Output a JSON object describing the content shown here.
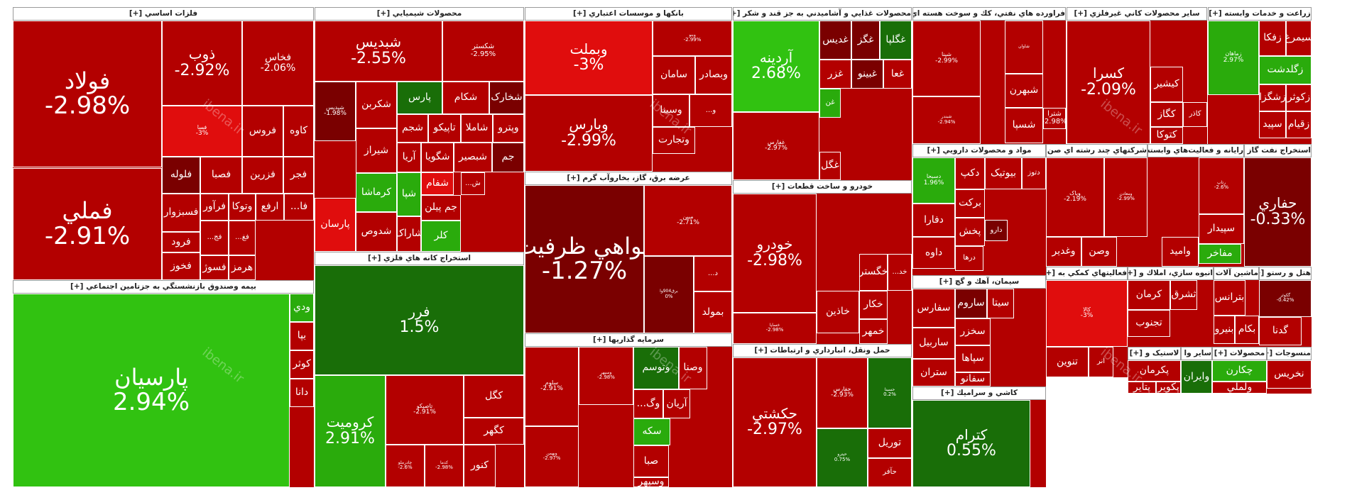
{
  "watermark_text": "ibena.ir",
  "colors": {
    "dark_red": "#7a0000",
    "red": "#b30000",
    "bright_red": "#e00d0d",
    "dark_green": "#196e08",
    "green": "#2aab0c",
    "bright_green": "#31c211"
  },
  "chart_data": {
    "type": "heatmap",
    "sectors": [
      {
        "name": "فلزات اساسي [+]",
        "tiles": [
          {
            "symbol": "فولاد",
            "change": "-2.98%"
          },
          {
            "symbol": "فملي",
            "change": "-2.91%"
          },
          {
            "symbol": "ذوب",
            "change": "-2.92%"
          },
          {
            "symbol": "فخاس",
            "change": "-2.06%"
          },
          {
            "symbol": "فسا",
            "change": "-3%"
          },
          {
            "symbol": "فروس",
            "change": ""
          },
          {
            "symbol": "کاوه",
            "change": ""
          },
          {
            "symbol": "فلوله",
            "change": ""
          },
          {
            "symbol": "فصبا",
            "change": ""
          },
          {
            "symbol": "فزرين",
            "change": ""
          },
          {
            "symbol": "فجر",
            "change": ""
          },
          {
            "symbol": "فسبزوار",
            "change": ""
          },
          {
            "symbol": "فرآور",
            "change": ""
          },
          {
            "symbol": "وتوکا",
            "change": ""
          },
          {
            "symbol": "ارفع",
            "change": ""
          },
          {
            "symbol": "فا...",
            "change": ""
          },
          {
            "symbol": "فرود",
            "change": ""
          },
          {
            "symbol": "فخوز",
            "change": ""
          },
          {
            "symbol": "فسوژ",
            "change": ""
          },
          {
            "symbol": "هرمز",
            "change": ""
          },
          {
            "symbol": "فج...",
            "change": ""
          },
          {
            "symbol": "فغ...",
            "change": ""
          }
        ]
      },
      {
        "name": "بيمه وصندوق بازنشستگي به جزتامين اجتماعي [+]",
        "tiles": [
          {
            "symbol": "پارسيان",
            "change": "2.94%"
          },
          {
            "symbol": "ودي",
            "change": ""
          },
          {
            "symbol": "بپا",
            "change": ""
          },
          {
            "symbol": "کوثر",
            "change": ""
          },
          {
            "symbol": "دانا",
            "change": ""
          }
        ]
      },
      {
        "name": "محصولات شيميايي [+]",
        "tiles": [
          {
            "symbol": "شبديس",
            "change": "-2.55%"
          },
          {
            "symbol": "شکستر",
            "change": "-2.95%"
          },
          {
            "symbol": "شپديس",
            "change": "-1.98%"
          },
          {
            "symbol": "شکربن",
            "change": ""
          },
          {
            "symbol": "شيراز",
            "change": ""
          },
          {
            "symbol": "کرماشا",
            "change": ""
          },
          {
            "symbol": "شدوص",
            "change": ""
          },
          {
            "symbol": "پارسان",
            "change": ""
          },
          {
            "symbol": "پارس",
            "change": ""
          },
          {
            "symbol": "شکام",
            "change": ""
          },
          {
            "symbol": "شخارک",
            "change": ""
          },
          {
            "symbol": "شجم",
            "change": ""
          },
          {
            "symbol": "تاپيکو",
            "change": ""
          },
          {
            "symbol": "شاملا",
            "change": ""
          },
          {
            "symbol": "وپترو",
            "change": ""
          },
          {
            "symbol": "آريا",
            "change": ""
          },
          {
            "symbol": "شگويا",
            "change": ""
          },
          {
            "symbol": "شبصير",
            "change": ""
          },
          {
            "symbol": "جم",
            "change": ""
          },
          {
            "symbol": "شفام",
            "change": ""
          },
          {
            "symbol": "شپا",
            "change": ""
          },
          {
            "symbol": "شاراک",
            "change": ""
          },
          {
            "symbol": "جم پيلن",
            "change": ""
          },
          {
            "symbol": "کلر",
            "change": ""
          },
          {
            "symbol": "ش...",
            "change": ""
          }
        ]
      },
      {
        "name": "استخراج کانه هاي فلزي [+]",
        "tiles": [
          {
            "symbol": "فرر",
            "change": "1.5%"
          },
          {
            "symbol": "کروميت",
            "change": "2.91%"
          },
          {
            "symbol": "تاصيکو",
            "change": "-2.91%"
          },
          {
            "symbol": "کگل",
            "change": ""
          },
          {
            "symbol": "کنور",
            "change": ""
          },
          {
            "symbol": "کگهر",
            "change": ""
          },
          {
            "symbol": "چادرملو",
            "change": "-2.6%"
          },
          {
            "symbol": "کدما",
            "change": "-2.98%"
          }
        ]
      },
      {
        "name": "بانکها و موسسات اعتباري [+]",
        "tiles": [
          {
            "symbol": "وبملت",
            "change": "-3%"
          },
          {
            "symbol": "وبارس",
            "change": "-2.99%"
          },
          {
            "symbol": "وبنو",
            "change": "-2.99%"
          },
          {
            "symbol": "سامان",
            "change": ""
          },
          {
            "symbol": "وبصادر",
            "change": ""
          },
          {
            "symbol": "وسينا",
            "change": ""
          },
          {
            "symbol": "و...",
            "change": ""
          },
          {
            "symbol": "وتجارت",
            "change": ""
          }
        ]
      },
      {
        "name": "عرضه برق، گاز، بخاروآب گرم [+]",
        "tiles": [
          {
            "symbol": "گواهي ظرفيت",
            "change": "-1.27%"
          },
          {
            "symbol": "مبين",
            "change": "-2.71%"
          },
          {
            "symbol": "برق904وا",
            "change": "0%"
          },
          {
            "symbol": "بمولد",
            "change": ""
          },
          {
            "symbol": "د...",
            "change": ""
          }
        ]
      },
      {
        "name": "سرمايه گذاريها [+]",
        "tiles": [
          {
            "symbol": "سلوم",
            "change": "-2.91%"
          },
          {
            "symbol": "وسپهر",
            "change": "-2.98%"
          },
          {
            "symbol": "وتوسم",
            "change": ""
          },
          {
            "symbol": "وصنا",
            "change": ""
          },
          {
            "symbol": "وبهمن",
            "change": "-2.97%"
          },
          {
            "symbol": "آريان",
            "change": ""
          },
          {
            "symbol": "وگ...",
            "change": ""
          },
          {
            "symbol": "سکه",
            "change": ""
          },
          {
            "symbol": "صبا",
            "change": ""
          },
          {
            "symbol": "وسپهر",
            "change": ""
          }
        ]
      },
      {
        "name": "محصولات غذايي و آشاميدني به جز قند و شکر [+]",
        "tiles": [
          {
            "symbol": "آردينه",
            "change": "2.68%"
          },
          {
            "symbol": "غفارس",
            "change": "-2.97%"
          },
          {
            "symbol": "غديس",
            "change": ""
          },
          {
            "symbol": "غگز",
            "change": ""
          },
          {
            "symbol": "غگلپا",
            "change": ""
          },
          {
            "symbol": "غزر",
            "change": ""
          },
          {
            "symbol": "غبينو",
            "change": ""
          },
          {
            "symbol": "غعا",
            "change": ""
          },
          {
            "symbol": "غن",
            "change": ""
          },
          {
            "symbol": "غگل",
            "change": ""
          }
        ]
      },
      {
        "name": "خودرو و ساخت قطعات [+]",
        "tiles": [
          {
            "symbol": "خودرو",
            "change": "-2.98%"
          },
          {
            "symbol": "خساپا",
            "change": "-2.98%"
          },
          {
            "symbol": "خگستر",
            "change": ""
          },
          {
            "symbol": "خکار",
            "change": ""
          },
          {
            "symbol": "خاذين",
            "change": ""
          },
          {
            "symbol": "خمهر",
            "change": ""
          },
          {
            "symbol": "خد...",
            "change": ""
          }
        ]
      },
      {
        "name": "حمل ونقل، انبارداري و ارتباطات [+]",
        "tiles": [
          {
            "symbol": "حکشتي",
            "change": "-2.97%"
          },
          {
            "symbol": "حفارس",
            "change": "-2.93%"
          },
          {
            "symbol": "حسينا",
            "change": "0.2%"
          },
          {
            "symbol": "حپترو",
            "change": "0.75%"
          },
          {
            "symbol": "توريل",
            "change": ""
          },
          {
            "symbol": "حآفر",
            "change": ""
          }
        ]
      },
      {
        "name": "فراورده هاي نفتي، کك و سوخت هسته اي [+]",
        "tiles": [
          {
            "symbol": "شپنا",
            "change": "-2.99%"
          },
          {
            "symbol": "شبندر",
            "change": "-2.94%"
          },
          {
            "symbol": "شاوان",
            "change": ""
          },
          {
            "symbol": "شبهرن",
            "change": ""
          },
          {
            "symbol": "شسپا",
            "change": ""
          },
          {
            "symbol": "شترا",
            "change": "-2.98%"
          }
        ]
      },
      {
        "name": "مواد و محصولات دارويي [+]",
        "tiles": [
          {
            "symbol": "دسبحا",
            "change": "1.96%"
          },
          {
            "symbol": "دکپ",
            "change": ""
          },
          {
            "symbol": "بيوتيک",
            "change": ""
          },
          {
            "symbol": "دتوز",
            "change": ""
          },
          {
            "symbol": "برکت",
            "change": ""
          },
          {
            "symbol": "دفارا",
            "change": ""
          },
          {
            "symbol": "پخش",
            "change": ""
          },
          {
            "symbol": "داوه",
            "change": ""
          },
          {
            "symbol": "دارو",
            "change": ""
          },
          {
            "symbol": "درها",
            "change": ""
          }
        ]
      },
      {
        "name": "سيمان، آهك و گچ [+]",
        "tiles": [
          {
            "symbol": "سفارس",
            "change": ""
          },
          {
            "symbol": "ساروم",
            "change": ""
          },
          {
            "symbol": "سيتا",
            "change": ""
          },
          {
            "symbol": "سخزر",
            "change": ""
          },
          {
            "symbol": "ساربيل",
            "change": ""
          },
          {
            "symbol": "سپاها",
            "change": ""
          },
          {
            "symbol": "سفانو",
            "change": ""
          },
          {
            "symbol": "ستران",
            "change": ""
          }
        ]
      },
      {
        "name": "كاشي و سراميك [+]",
        "tiles": [
          {
            "symbol": "کترام",
            "change": "0.55%"
          }
        ]
      },
      {
        "name": "ساير محصولات کاني غيرفلزي [+]",
        "tiles": [
          {
            "symbol": "کسرا",
            "change": "-2.09%"
          },
          {
            "symbol": "کيشير",
            "change": ""
          },
          {
            "symbol": "کگاز",
            "change": ""
          },
          {
            "symbol": "کتوکا",
            "change": ""
          },
          {
            "symbol": "کاذر",
            "change": ""
          }
        ]
      },
      {
        "name": "زراعت و خدمات وابسته [+]",
        "tiles": [
          {
            "symbol": "زماهان",
            "change": "2.97%"
          },
          {
            "symbol": "زفکا",
            "change": ""
          },
          {
            "symbol": "سيمرغ",
            "change": ""
          },
          {
            "symbol": "زگلدشت",
            "change": ""
          },
          {
            "symbol": "زکوثر",
            "change": ""
          },
          {
            "symbol": "زشگزا",
            "change": ""
          },
          {
            "symbol": "زقيام",
            "change": ""
          },
          {
            "symbol": "سپيد",
            "change": ""
          }
        ]
      },
      {
        "name": "شرکتهاي چند رشته اي صن [+]",
        "tiles": [
          {
            "symbol": "وپاک",
            "change": "-2.19%"
          },
          {
            "symbol": "وغدير",
            "change": ""
          },
          {
            "symbol": "ومعادن",
            "change": "-2.99%"
          },
          {
            "symbol": "وصن",
            "change": ""
          }
        ]
      },
      {
        "name": "رايانه و فعاليت‌هاي وابسته [+]",
        "tiles": [
          {
            "symbol": "سپيدار",
            "change": ""
          },
          {
            "symbol": "مفاخر",
            "change": ""
          },
          {
            "symbol": "رتاپ",
            "change": "-2.6%"
          },
          {
            "symbol": "وامید",
            "change": ""
          }
        ]
      },
      {
        "name": "استخراج نفت گاز و خدما [+]",
        "tiles": [
          {
            "symbol": "حفاري",
            "change": "-0.33%"
          }
        ]
      },
      {
        "name": "فعاليتهاي کمکي به [+]",
        "tiles": [
          {
            "symbol": "کالا",
            "change": "-3%"
          },
          {
            "symbol": "تنوين",
            "change": ""
          },
          {
            "symbol": "انر",
            "change": ""
          }
        ]
      },
      {
        "name": "انبوه سازي، املاك و [+]",
        "tiles": [
          {
            "symbol": "کرمان",
            "change": ""
          },
          {
            "symbol": "ثشرق",
            "change": ""
          },
          {
            "symbol": "تجنوب",
            "change": ""
          }
        ]
      },
      {
        "name": "ماشين آلات [+]",
        "tiles": [
          {
            "symbol": "بترانس",
            "change": ""
          },
          {
            "symbol": "بنيرو",
            "change": ""
          },
          {
            "symbol": "بکام",
            "change": ""
          }
        ]
      },
      {
        "name": "هتل و رستو [+]",
        "tiles": [
          {
            "symbol": "گکوثر",
            "change": "-0.42%"
          },
          {
            "symbol": "گدنا",
            "change": ""
          }
        ]
      },
      {
        "name": "لاستيک و [+]",
        "tiles": [
          {
            "symbol": "پکرمان",
            "change": ""
          },
          {
            "symbol": "پتاير",
            "change": ""
          },
          {
            "symbol": "پکوير",
            "change": ""
          }
        ]
      },
      {
        "name": "ساير وا [+]",
        "tiles": [
          {
            "symbol": "وايران",
            "change": ""
          }
        ]
      },
      {
        "name": "محصولات [+]",
        "tiles": [
          {
            "symbol": "چکارن",
            "change": ""
          },
          {
            "symbol": "ولملي",
            "change": ""
          }
        ]
      },
      {
        "name": "منسوجات [+]",
        "tiles": [
          {
            "symbol": "نخريس",
            "change": ""
          }
        ]
      }
    ]
  }
}
